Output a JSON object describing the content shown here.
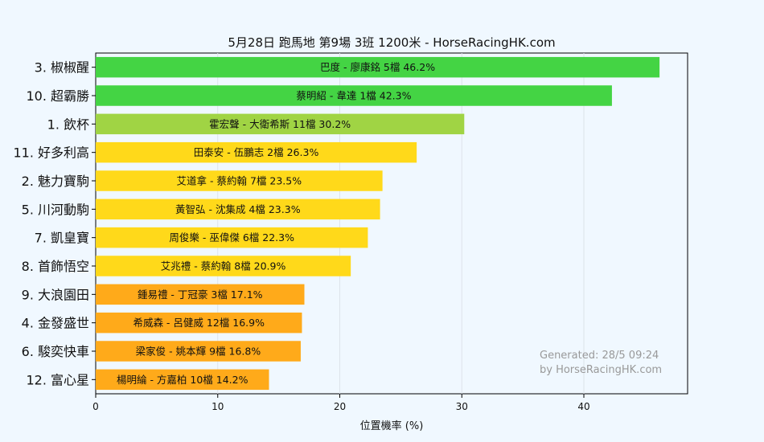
{
  "chart_data": {
    "type": "bar",
    "orientation": "horizontal",
    "title": "5月28日  跑馬地  第9場  3班  1200米 - HorseRacingHK.com",
    "xlabel": "位置機率 (%)",
    "ylabel": "",
    "xlim": [
      0,
      48.5
    ],
    "xticks": [
      0,
      10,
      20,
      30,
      40
    ],
    "grid": "vertical",
    "categories": [
      "3. 椒椒醒",
      "10. 超霸勝",
      "1. 飲杯",
      "11. 好多利高",
      "2. 魅力寶駒",
      "5. 川河動駒",
      "7. 凱皇寶",
      "8. 首飾悟空",
      "9. 大浪園田",
      "4. 金發盛世",
      "6. 駿奕快車",
      "12. 富心星"
    ],
    "values": [
      46.2,
      42.3,
      30.2,
      26.3,
      23.5,
      23.3,
      22.3,
      20.9,
      17.1,
      16.9,
      16.8,
      14.2
    ],
    "bar_labels": [
      "巴度 - 廖康銘 5檔  46.2%",
      "蔡明紹 - 韋達 1檔  42.3%",
      "霍宏聲 - 大衛希斯 11檔  30.2%",
      "田泰安 - 伍鵬志 2檔  26.3%",
      "艾道拿 - 蔡約翰 7檔  23.5%",
      "黃智弘 - 沈集成 4檔  23.3%",
      "周俊樂 - 巫偉傑 6檔  22.3%",
      "艾兆禮 - 蔡約翰 8檔  20.9%",
      "鍾易禮 - 丁冠豪 3檔  17.1%",
      "希威森 - 呂健威 12檔  16.9%",
      "梁家俊 - 姚本輝 9檔  16.8%",
      "楊明綸 - 方嘉柏 10檔  14.2%"
    ],
    "colors": [
      "#44d444",
      "#44d444",
      "#a0d444",
      "#ffd91a",
      "#ffd91a",
      "#ffd91a",
      "#ffd91a",
      "#ffd91a",
      "#ffaa1a",
      "#ffaa1a",
      "#ffaa1a",
      "#ffaa1a"
    ],
    "annotation": [
      "Generated: 28/5 09:24",
      "by HorseRacingHK.com"
    ]
  }
}
